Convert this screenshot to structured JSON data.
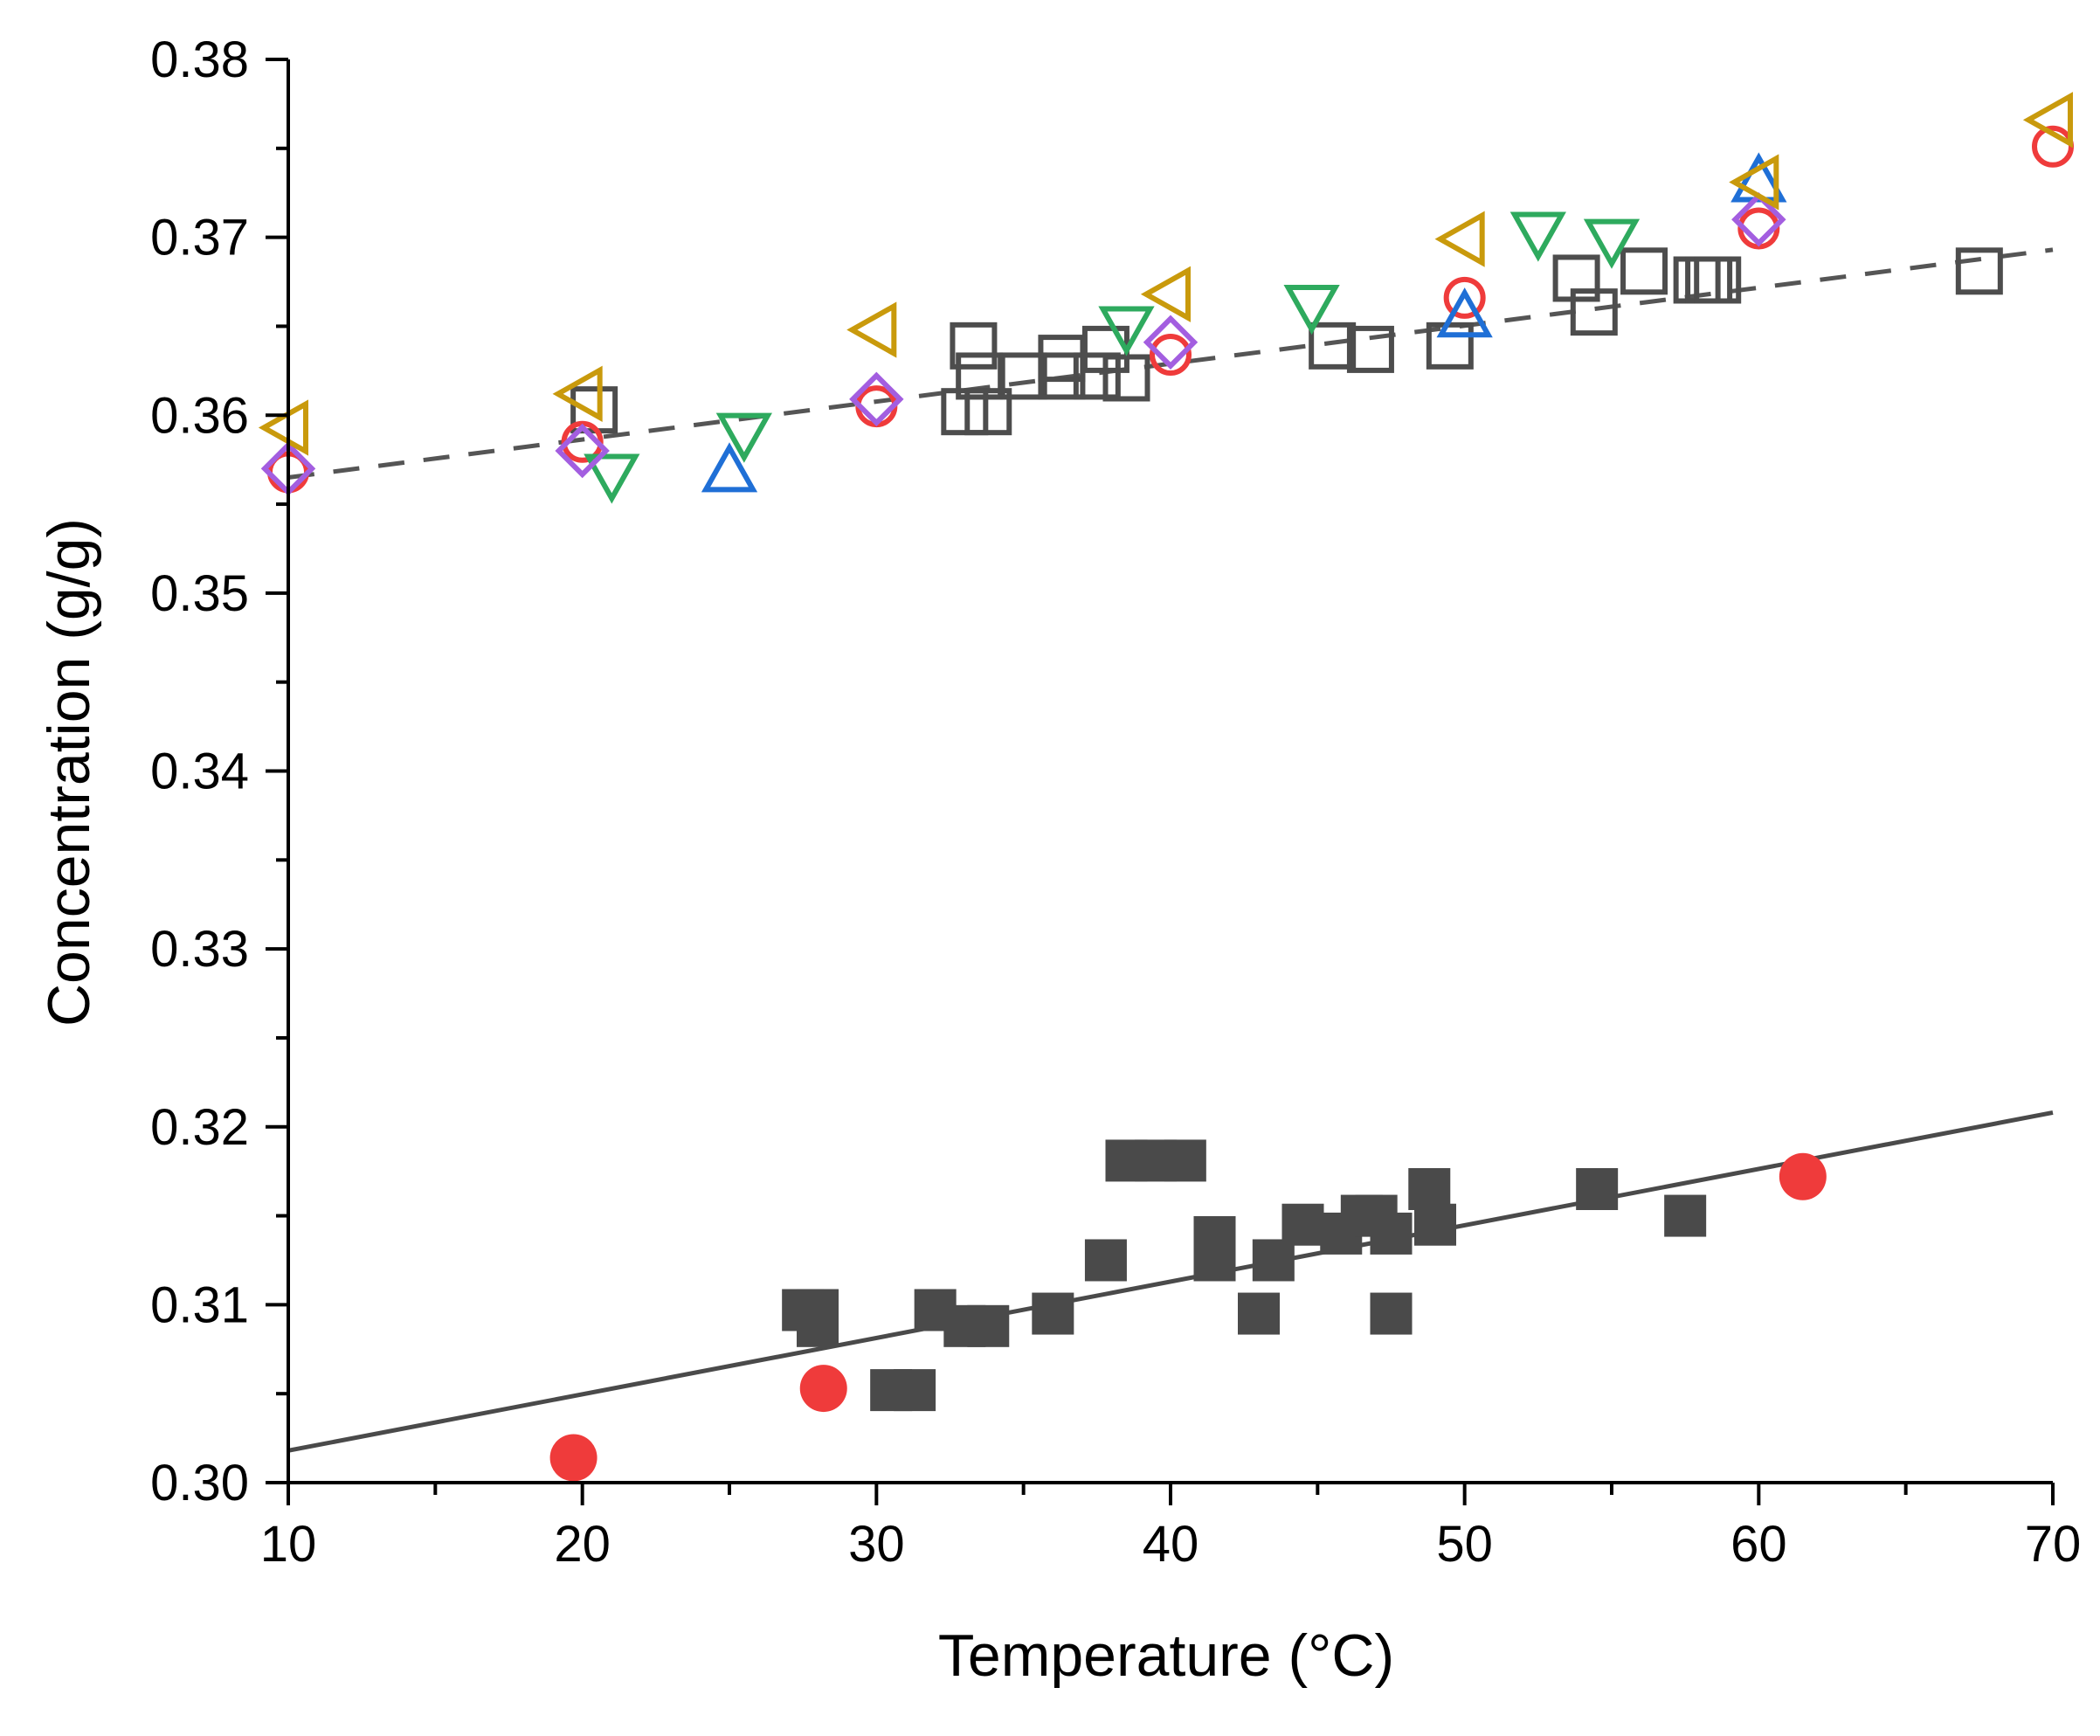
{
  "chart_data": {
    "type": "scatter",
    "xlabel": "Temperature (°C)",
    "ylabel": "Concentration (g/g)",
    "xlim": [
      10,
      70
    ],
    "ylim": [
      0.3,
      0.38
    ],
    "xticks": [
      10,
      20,
      30,
      40,
      50,
      60,
      70
    ],
    "xtick_labels": [
      "10",
      "20",
      "30",
      "40",
      "50",
      "60",
      "70"
    ],
    "yticks": [
      0.3,
      0.31,
      0.32,
      0.33,
      0.34,
      0.35,
      0.36,
      0.37,
      0.38
    ],
    "ytick_labels": [
      "0.30",
      "0.31",
      "0.32",
      "0.33",
      "0.34",
      "0.35",
      "0.36",
      "0.37",
      "0.38"
    ],
    "grid": false,
    "legend": "none",
    "fit_lines": [
      {
        "style": "dashed",
        "color": "#555555",
        "x": [
          10,
          70
        ],
        "y": [
          0.3565,
          0.3693
        ]
      },
      {
        "style": "solid",
        "color": "#4a4a4a",
        "x": [
          10,
          70
        ],
        "y": [
          0.3018,
          0.3208
        ]
      }
    ],
    "series": [
      {
        "marker": "square-open",
        "color": "#4d4d4d",
        "x": [
          20.4,
          33.3,
          33.5,
          33.0,
          33.8,
          35.0,
          36.3,
          36.3,
          37.5,
          37.8,
          38.5,
          45.5,
          46.8,
          49.5,
          53.8,
          54.4,
          56.1,
          57.9,
          58.3,
          58.6,
          67.5
        ],
        "y": [
          0.3603,
          0.3639,
          0.3622,
          0.3602,
          0.3602,
          0.3622,
          0.3622,
          0.3632,
          0.3622,
          0.3637,
          0.3621,
          0.3639,
          0.3637,
          0.3639,
          0.3677,
          0.3658,
          0.3681,
          0.3676,
          0.3676,
          0.3676,
          0.3681
        ]
      },
      {
        "marker": "circle-open",
        "color": "#ef3b3b",
        "x": [
          10,
          20,
          30,
          40,
          50,
          60,
          70
        ],
        "y": [
          0.3568,
          0.3585,
          0.3605,
          0.3634,
          0.3666,
          0.3705,
          0.3751
        ]
      },
      {
        "marker": "triangle-up-open",
        "color": "#1f6fd6",
        "x": [
          25,
          50,
          60
        ],
        "y": [
          0.3568,
          0.3655,
          0.3731
        ]
      },
      {
        "marker": "triangle-down-open",
        "color": "#2eaa5e",
        "x": [
          21,
          25.5,
          38.5,
          44.8,
          52.5,
          55
        ],
        "y": [
          0.3567,
          0.359,
          0.365,
          0.3662,
          0.3703,
          0.3699
        ]
      },
      {
        "marker": "diamond-open",
        "color": "#a35ee0",
        "x": [
          10,
          20,
          30,
          40,
          60
        ],
        "y": [
          0.357,
          0.358,
          0.3609,
          0.3641,
          0.371
        ]
      },
      {
        "marker": "triangle-left-open",
        "color": "#c99a0c",
        "x": [
          10,
          20,
          30,
          40,
          50,
          60,
          70
        ],
        "y": [
          0.3593,
          0.3612,
          0.3648,
          0.3668,
          0.3699,
          0.3731,
          0.3766
        ]
      },
      {
        "marker": "square-filled",
        "color": "#4a4a4a",
        "x": [
          27.5,
          28.0,
          28.0,
          30.5,
          31.3,
          32.0,
          33.0,
          33.8,
          36.0,
          37.8,
          38.5,
          39.5,
          40.5,
          41.5,
          41.5,
          41.5,
          43.0,
          43.5,
          44.5,
          45.8,
          46.5,
          47.0,
          47.5,
          47.5,
          48.8,
          49.0,
          54.5,
          57.5
        ],
        "y": [
          0.3097,
          0.3088,
          0.3097,
          0.3052,
          0.3052,
          0.3097,
          0.3088,
          0.3088,
          0.3095,
          0.3125,
          0.3181,
          0.3181,
          0.3181,
          0.3138,
          0.3128,
          0.3125,
          0.3095,
          0.3125,
          0.3145,
          0.314,
          0.315,
          0.315,
          0.314,
          0.3095,
          0.3165,
          0.3145,
          0.3165,
          0.315
        ]
      },
      {
        "marker": "circle-filled",
        "color": "#ef3b3b",
        "x": [
          19.7,
          28.2,
          61.5
        ],
        "y": [
          0.3014,
          0.3053,
          0.3172
        ]
      }
    ]
  }
}
